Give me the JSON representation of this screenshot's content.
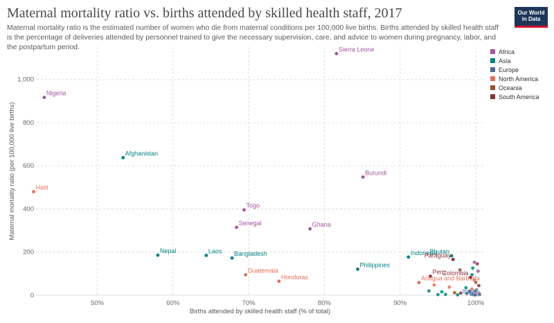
{
  "title": "Maternal mortality ratio vs. births attended by skilled health staff, 2017",
  "subtitle": "Maternal mortality ratio is the estimated number of women who die from maternal conditions per 100,000 live births. Births attended by skilled health staff is the percentage of deliveries attended by personnel trained to give the necessary supervision, care, and advice to women during pregnancy, labor, and the postpartum period.",
  "logo": {
    "line1": "Our World",
    "line2": "in Data"
  },
  "colors": {
    "Africa": "#a2559c",
    "Asia": "#00847e",
    "Europe": "#4c6a9c",
    "North America": "#e56e5a",
    "Oceania": "#9a5129",
    "South America": "#883039"
  },
  "chart_data": {
    "type": "scatter",
    "xlabel": "Births attended by skilled health staff (% of total)",
    "ylabel": "Maternal mortality ratio (per 100,000 live births)",
    "xlim": [
      42,
      101
    ],
    "ylim": [
      0,
      1150
    ],
    "xticks": [
      50,
      60,
      70,
      80,
      90,
      100
    ],
    "xtick_labels": [
      "50%",
      "60%",
      "70%",
      "80%",
      "90%",
      "100%"
    ],
    "yticks": [
      0,
      200,
      400,
      600,
      800,
      1000
    ],
    "ytick_labels": [
      "0",
      "200",
      "400",
      "600",
      "800",
      "1,000"
    ],
    "grid": true,
    "legend": [
      "Africa",
      "Asia",
      "Europe",
      "North America",
      "Oceania",
      "South America"
    ],
    "legend_position": "right",
    "labeled_points": [
      {
        "name": "Sierra Leone",
        "x": 81.6,
        "y": 1120,
        "region": "Africa"
      },
      {
        "name": "Nigeria",
        "x": 43.0,
        "y": 917,
        "region": "Africa"
      },
      {
        "name": "Afghanistan",
        "x": 53.4,
        "y": 638,
        "region": "Asia"
      },
      {
        "name": "Burundi",
        "x": 85.1,
        "y": 548,
        "region": "Africa"
      },
      {
        "name": "Haiti",
        "x": 41.6,
        "y": 480,
        "region": "North America"
      },
      {
        "name": "Togo",
        "x": 69.4,
        "y": 396,
        "region": "Africa"
      },
      {
        "name": "Senegal",
        "x": 68.4,
        "y": 315,
        "region": "Africa"
      },
      {
        "name": "Ghana",
        "x": 78.1,
        "y": 308,
        "region": "Africa"
      },
      {
        "name": "Nepal",
        "x": 58.0,
        "y": 186,
        "region": "Asia"
      },
      {
        "name": "Laos",
        "x": 64.4,
        "y": 185,
        "region": "Asia"
      },
      {
        "name": "Bangladesh",
        "x": 67.8,
        "y": 173,
        "region": "Asia"
      },
      {
        "name": "Indonesia",
        "x": 91.1,
        "y": 177,
        "region": "Asia"
      },
      {
        "name": "Bhutan",
        "x": 96.8,
        "y": 183,
        "region": "Asia"
      },
      {
        "name": "Paraguay",
        "x": 97.0,
        "y": 166,
        "region": "South America"
      },
      {
        "name": "Philippines",
        "x": 84.4,
        "y": 121,
        "region": "Asia"
      },
      {
        "name": "Guatemala",
        "x": 69.6,
        "y": 95,
        "region": "North America"
      },
      {
        "name": "Peru",
        "x": 94.0,
        "y": 88,
        "region": "South America"
      },
      {
        "name": "Colombia",
        "x": 99.3,
        "y": 83,
        "region": "South America"
      },
      {
        "name": "Honduras",
        "x": 74.0,
        "y": 65,
        "region": "North America"
      },
      {
        "name": "Antigua and Barbuda",
        "x": 92.5,
        "y": 59,
        "region": "North America"
      },
      {
        "name": "Italy",
        "x": 99.9,
        "y": 2,
        "region": "Europe"
      }
    ],
    "other_points": [
      {
        "x": 99.8,
        "y": 153,
        "region": "Africa"
      },
      {
        "x": 100.2,
        "y": 146,
        "region": "South America"
      },
      {
        "x": 99.6,
        "y": 126,
        "region": "Asia"
      },
      {
        "x": 97.9,
        "y": 118,
        "region": "Oceania"
      },
      {
        "x": 100.3,
        "y": 112,
        "region": "Africa"
      },
      {
        "x": 99.5,
        "y": 95,
        "region": "Asia"
      },
      {
        "x": 99.8,
        "y": 70,
        "region": "North America"
      },
      {
        "x": 100.0,
        "y": 60,
        "region": "Oceania"
      },
      {
        "x": 94.5,
        "y": 48,
        "region": "North America"
      },
      {
        "x": 96.5,
        "y": 38,
        "region": "North America"
      },
      {
        "x": 100.4,
        "y": 45,
        "region": "South America"
      },
      {
        "x": 98.7,
        "y": 35,
        "region": "Asia"
      },
      {
        "x": 99.5,
        "y": 29,
        "region": "North America"
      },
      {
        "x": 93.8,
        "y": 20,
        "region": "Asia"
      },
      {
        "x": 95.5,
        "y": 16,
        "region": "Asia"
      },
      {
        "x": 97.2,
        "y": 12,
        "region": "Oceania"
      },
      {
        "x": 98.0,
        "y": 10,
        "region": "South America"
      },
      {
        "x": 99.2,
        "y": 18,
        "region": "Asia"
      },
      {
        "x": 100.1,
        "y": 25,
        "region": "Europe"
      },
      {
        "x": 96.0,
        "y": 4,
        "region": "Asia"
      },
      {
        "x": 98.8,
        "y": 8,
        "region": "Europe"
      },
      {
        "x": 99.4,
        "y": 5,
        "region": "Europe"
      },
      {
        "x": 99.7,
        "y": 9,
        "region": "Europe"
      },
      {
        "x": 100.0,
        "y": 6,
        "region": "Europe"
      },
      {
        "x": 100.2,
        "y": 3,
        "region": "Europe"
      },
      {
        "x": 100.4,
        "y": 11,
        "region": "Europe"
      },
      {
        "x": 100.1,
        "y": 14,
        "region": "Europe"
      },
      {
        "x": 99.9,
        "y": 19,
        "region": "Europe"
      },
      {
        "x": 100.3,
        "y": 7,
        "region": "North America"
      },
      {
        "x": 100.5,
        "y": 4,
        "region": "Europe"
      },
      {
        "x": 99.6,
        "y": 3,
        "region": "Europe"
      },
      {
        "x": 100.0,
        "y": 2,
        "region": "Europe"
      },
      {
        "x": 97.6,
        "y": 2,
        "region": "Asia"
      },
      {
        "x": 95.0,
        "y": 3,
        "region": "Asia"
      }
    ]
  }
}
